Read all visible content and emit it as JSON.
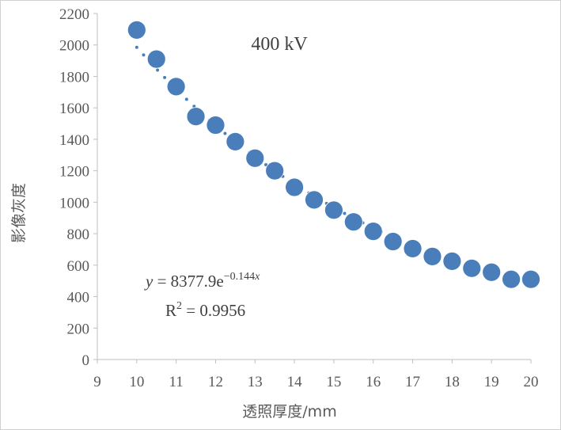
{
  "chart_data": {
    "type": "scatter",
    "title": "400 kV",
    "xlabel": "透照厚度/mm",
    "ylabel": "影像灰度",
    "xlim": [
      9,
      20
    ],
    "ylim": [
      0,
      2200
    ],
    "xticks": [
      9,
      10,
      11,
      12,
      13,
      14,
      15,
      16,
      17,
      18,
      19,
      20
    ],
    "yticks": [
      0,
      200,
      400,
      600,
      800,
      1000,
      1200,
      1400,
      1600,
      1800,
      2000,
      2200
    ],
    "grid": false,
    "legend": "none",
    "marker_color": "#4a7ebb",
    "points": {
      "x": [
        10,
        10.5,
        11,
        11.5,
        12,
        12.5,
        13,
        13.5,
        14,
        14.5,
        15,
        15.5,
        16,
        16.5,
        17,
        17.5,
        18,
        18.5,
        19,
        19.5,
        20
      ],
      "y": [
        2095,
        1910,
        1735,
        1545,
        1490,
        1385,
        1280,
        1200,
        1095,
        1015,
        950,
        875,
        815,
        750,
        705,
        655,
        625,
        580,
        555,
        510,
        510
      ]
    },
    "trendline": {
      "type": "exponential",
      "a": 8377.9,
      "b": -0.144,
      "style": "dotted"
    },
    "equation": {
      "y_var": "y",
      "eq": " = 8377.9e",
      "exponent": "−0.144",
      "exponent_var": "x"
    },
    "r_squared": {
      "label": "R",
      "power": "2",
      "rest": " = 0.9956"
    }
  }
}
